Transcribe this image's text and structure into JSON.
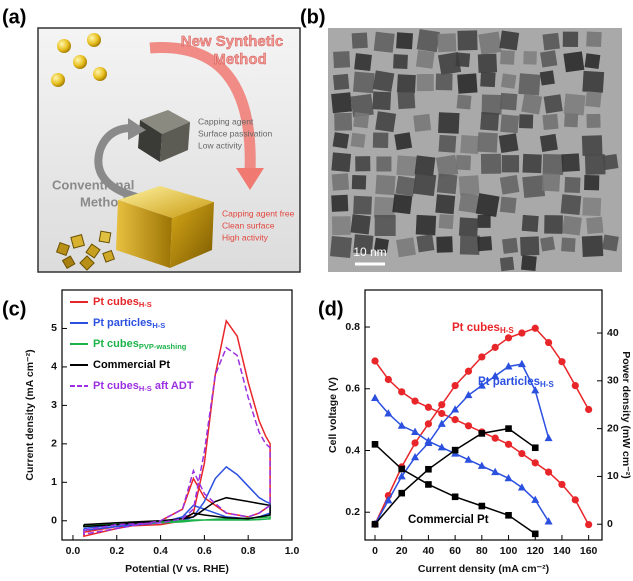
{
  "panel_a": {
    "label": "(a)",
    "new_method": [
      "New Synthetic",
      "Method"
    ],
    "capping": [
      "Capping agent",
      "Surface passivation",
      "Low activity"
    ],
    "conventional": [
      "Conventional",
      "Method"
    ],
    "free": [
      "Capping agent free",
      "Clean surface",
      "High activity"
    ]
  },
  "panel_b": {
    "label": "(b)",
    "scale_bar": "10 nm"
  },
  "chart_data": [
    {
      "type": "line",
      "label": "(c)",
      "xlabel": "Potential (V vs. RHE)",
      "ylabel": "Current density (mA cm⁻²)",
      "x": [
        0.05,
        0.2,
        0.4,
        0.5,
        0.55,
        0.6,
        0.65,
        0.7,
        0.75,
        0.8,
        0.85,
        0.88,
        0.9,
        0.9,
        0.85,
        0.8,
        0.7,
        0.6,
        0.55,
        0.5,
        0.4,
        0.2,
        0.05,
        0.05
      ],
      "xlim": [
        -0.05,
        1.0
      ],
      "xticks": [
        {
          "value": 0,
          "label": "0.0"
        },
        0.2,
        0.4,
        0.6,
        0.8,
        {
          "value": 1,
          "label": "1.0"
        }
      ],
      "ylim": [
        -0.5,
        6
      ],
      "yticks": [
        0,
        1,
        2,
        3,
        4,
        5
      ],
      "legend": "upper left",
      "series": [
        {
          "name": "Pt cubes",
          "name_sub": "H-S",
          "color": "#e8262a",
          "values": [
            -0.3,
            -0.15,
            -0.1,
            0,
            0.2,
            1.5,
            3.8,
            5.2,
            4.8,
            3.6,
            2.6,
            2.2,
            2.0,
            0.4,
            0.2,
            0.1,
            0.2,
            0.6,
            1.1,
            0.3,
            0,
            -0.2,
            -0.4,
            -0.3
          ]
        },
        {
          "name": "Pt particles",
          "name_sub": "H-S",
          "color": "#2b50e0",
          "values": [
            -0.2,
            -0.1,
            -0.05,
            0,
            0.1,
            0.5,
            1.1,
            1.4,
            1.2,
            0.9,
            0.6,
            0.5,
            0.45,
            0.2,
            0.1,
            0.05,
            0.1,
            0.3,
            0.4,
            0.1,
            -0.05,
            -0.15,
            -0.25,
            -0.2
          ]
        },
        {
          "name": "Pt cubes",
          "name_sub": "PVP-washing",
          "color": "#1db34a",
          "values": [
            -0.1,
            -0.08,
            -0.05,
            -0.03,
            0,
            0.02,
            0.04,
            0.05,
            0.06,
            0.07,
            0.08,
            0.09,
            0.1,
            0.05,
            0.03,
            0.02,
            0.02,
            0.02,
            0.02,
            0,
            -0.03,
            -0.08,
            -0.15,
            -0.1
          ]
        },
        {
          "name": "Commercial Pt",
          "color": "#000000",
          "values": [
            -0.1,
            -0.05,
            0,
            0.05,
            0.1,
            0.3,
            0.5,
            0.6,
            0.55,
            0.5,
            0.45,
            0.42,
            0.4,
            0.15,
            0.1,
            0.05,
            0.08,
            0.15,
            0.2,
            0.05,
            0,
            -0.1,
            -0.15,
            -0.1
          ]
        },
        {
          "name": "Pt cubes",
          "name_sub": "H-S",
          "name_after": " aft ADT",
          "color": "#9b30e0",
          "dashed": true,
          "values": [
            -0.25,
            -0.1,
            -0.05,
            0.05,
            0.3,
            1.8,
            3.8,
            4.5,
            4.3,
            3.2,
            2.3,
            2.0,
            1.9,
            0.4,
            0.2,
            0.1,
            0.2,
            0.7,
            1.3,
            0.3,
            0,
            -0.2,
            -0.35,
            -0.25
          ]
        }
      ]
    },
    {
      "type": "line",
      "label": "(d)",
      "xlabel": "Current density (mA cm⁻²)",
      "ylabel": "Cell voltage (V)",
      "y2label": "Power density (mW cm⁻²)",
      "xlim": [
        -7.5,
        170
      ],
      "xticks": [
        0,
        20,
        40,
        60,
        80,
        100,
        120,
        140,
        160
      ],
      "ylim": [
        0.11,
        0.92
      ],
      "yticks": [
        0.2,
        0.4,
        0.6,
        0.8
      ],
      "y2lim": [
        -3.3,
        49
      ],
      "y2ticks": [
        0,
        10,
        20,
        30,
        40
      ],
      "series": [
        {
          "color": "#e8262a",
          "marker": "circle",
          "x": [
            0,
            10,
            20,
            30,
            40,
            50,
            60,
            70,
            80,
            90,
            100,
            110,
            120,
            130,
            140,
            150,
            160
          ],
          "values": [
            0.69,
            0.63,
            0.59,
            0.56,
            0.54,
            0.52,
            0.5,
            0.48,
            0.46,
            0.44,
            0.42,
            0.39,
            0.36,
            0.33,
            0.29,
            0.24,
            0.16
          ]
        },
        {
          "color": "#e8262a",
          "marker": "circle",
          "axis": "y2",
          "x": [
            0,
            10,
            20,
            30,
            40,
            50,
            60,
            70,
            80,
            90,
            100,
            110,
            120,
            130,
            140,
            150,
            160
          ],
          "values": [
            0,
            6,
            12,
            17,
            21,
            25,
            29,
            32,
            35,
            37,
            39,
            40,
            41,
            38,
            34,
            29,
            24
          ]
        },
        {
          "color": "#2b50e0",
          "marker": "triangle",
          "x": [
            0,
            10,
            20,
            30,
            40,
            50,
            60,
            70,
            80,
            90,
            100,
            110,
            120,
            130
          ],
          "values": [
            0.57,
            0.52,
            0.48,
            0.46,
            0.43,
            0.41,
            0.39,
            0.37,
            0.35,
            0.33,
            0.31,
            0.28,
            0.24,
            0.17
          ]
        },
        {
          "color": "#2b50e0",
          "marker": "triangle",
          "axis": "y2",
          "x": [
            0,
            10,
            20,
            30,
            40,
            50,
            60,
            70,
            80,
            90,
            100,
            110,
            120,
            130
          ],
          "values": [
            0,
            5,
            10,
            14,
            17,
            21,
            24,
            27,
            29,
            31,
            33,
            33.5,
            28,
            18
          ]
        },
        {
          "color": "#000000",
          "marker": "square",
          "x": [
            0,
            20,
            40,
            60,
            80,
            100,
            120
          ],
          "values": [
            0.42,
            0.34,
            0.29,
            0.25,
            0.22,
            0.19,
            0.13
          ]
        },
        {
          "color": "#000000",
          "marker": "square",
          "axis": "y2",
          "x": [
            0,
            20,
            40,
            60,
            80,
            100,
            120
          ],
          "values": [
            0,
            6.5,
            11.5,
            15.5,
            19,
            20,
            16
          ]
        }
      ],
      "annotations": [
        {
          "text": "Pt cubes",
          "sub": "H-S",
          "color": "#e8262a"
        },
        {
          "text": "Pt particles",
          "sub": "H-S",
          "color": "#2b50e0"
        },
        {
          "text": "Commercial Pt",
          "color": "#000000"
        }
      ]
    }
  ]
}
